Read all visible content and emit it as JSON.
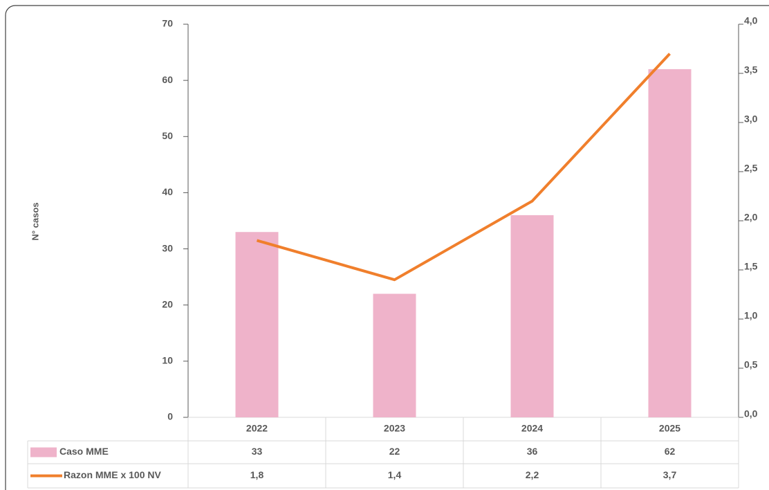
{
  "chart_data": {
    "type": "bar",
    "y_label": "N° casos",
    "categories": [
      "2022",
      "2023",
      "2024",
      "2025"
    ],
    "series": [
      {
        "name": "Caso MME",
        "type": "bar",
        "color": "#efb3ca",
        "values": [
          33,
          22,
          36,
          62
        ]
      },
      {
        "name": "Razon MME x 100 NV",
        "type": "line",
        "axis": "y2",
        "color": "#f07f2c",
        "values": [
          1.8,
          1.4,
          2.2,
          3.7
        ],
        "value_labels": [
          "1,8",
          "1,4",
          "2,2",
          "3,7"
        ]
      }
    ],
    "ylim": [
      0,
      70
    ],
    "yticks": [
      0,
      10,
      20,
      30,
      40,
      50,
      60,
      70
    ],
    "y2lim": [
      0,
      4
    ],
    "y2ticks": [
      {
        "value": 0,
        "label": "0,0"
      },
      {
        "value": 0.5,
        "label": "0,5"
      },
      {
        "value": 1,
        "label": "1,0"
      },
      {
        "value": 1.5,
        "label": "1,5"
      },
      {
        "value": 2,
        "label": "2,0"
      },
      {
        "value": 2.5,
        "label": "2,5"
      },
      {
        "value": 3,
        "label": "3,0"
      },
      {
        "value": 3.5,
        "label": "3,5"
      },
      {
        "value": 4,
        "label": "4,0"
      }
    ],
    "grid": false,
    "data_table": true
  }
}
